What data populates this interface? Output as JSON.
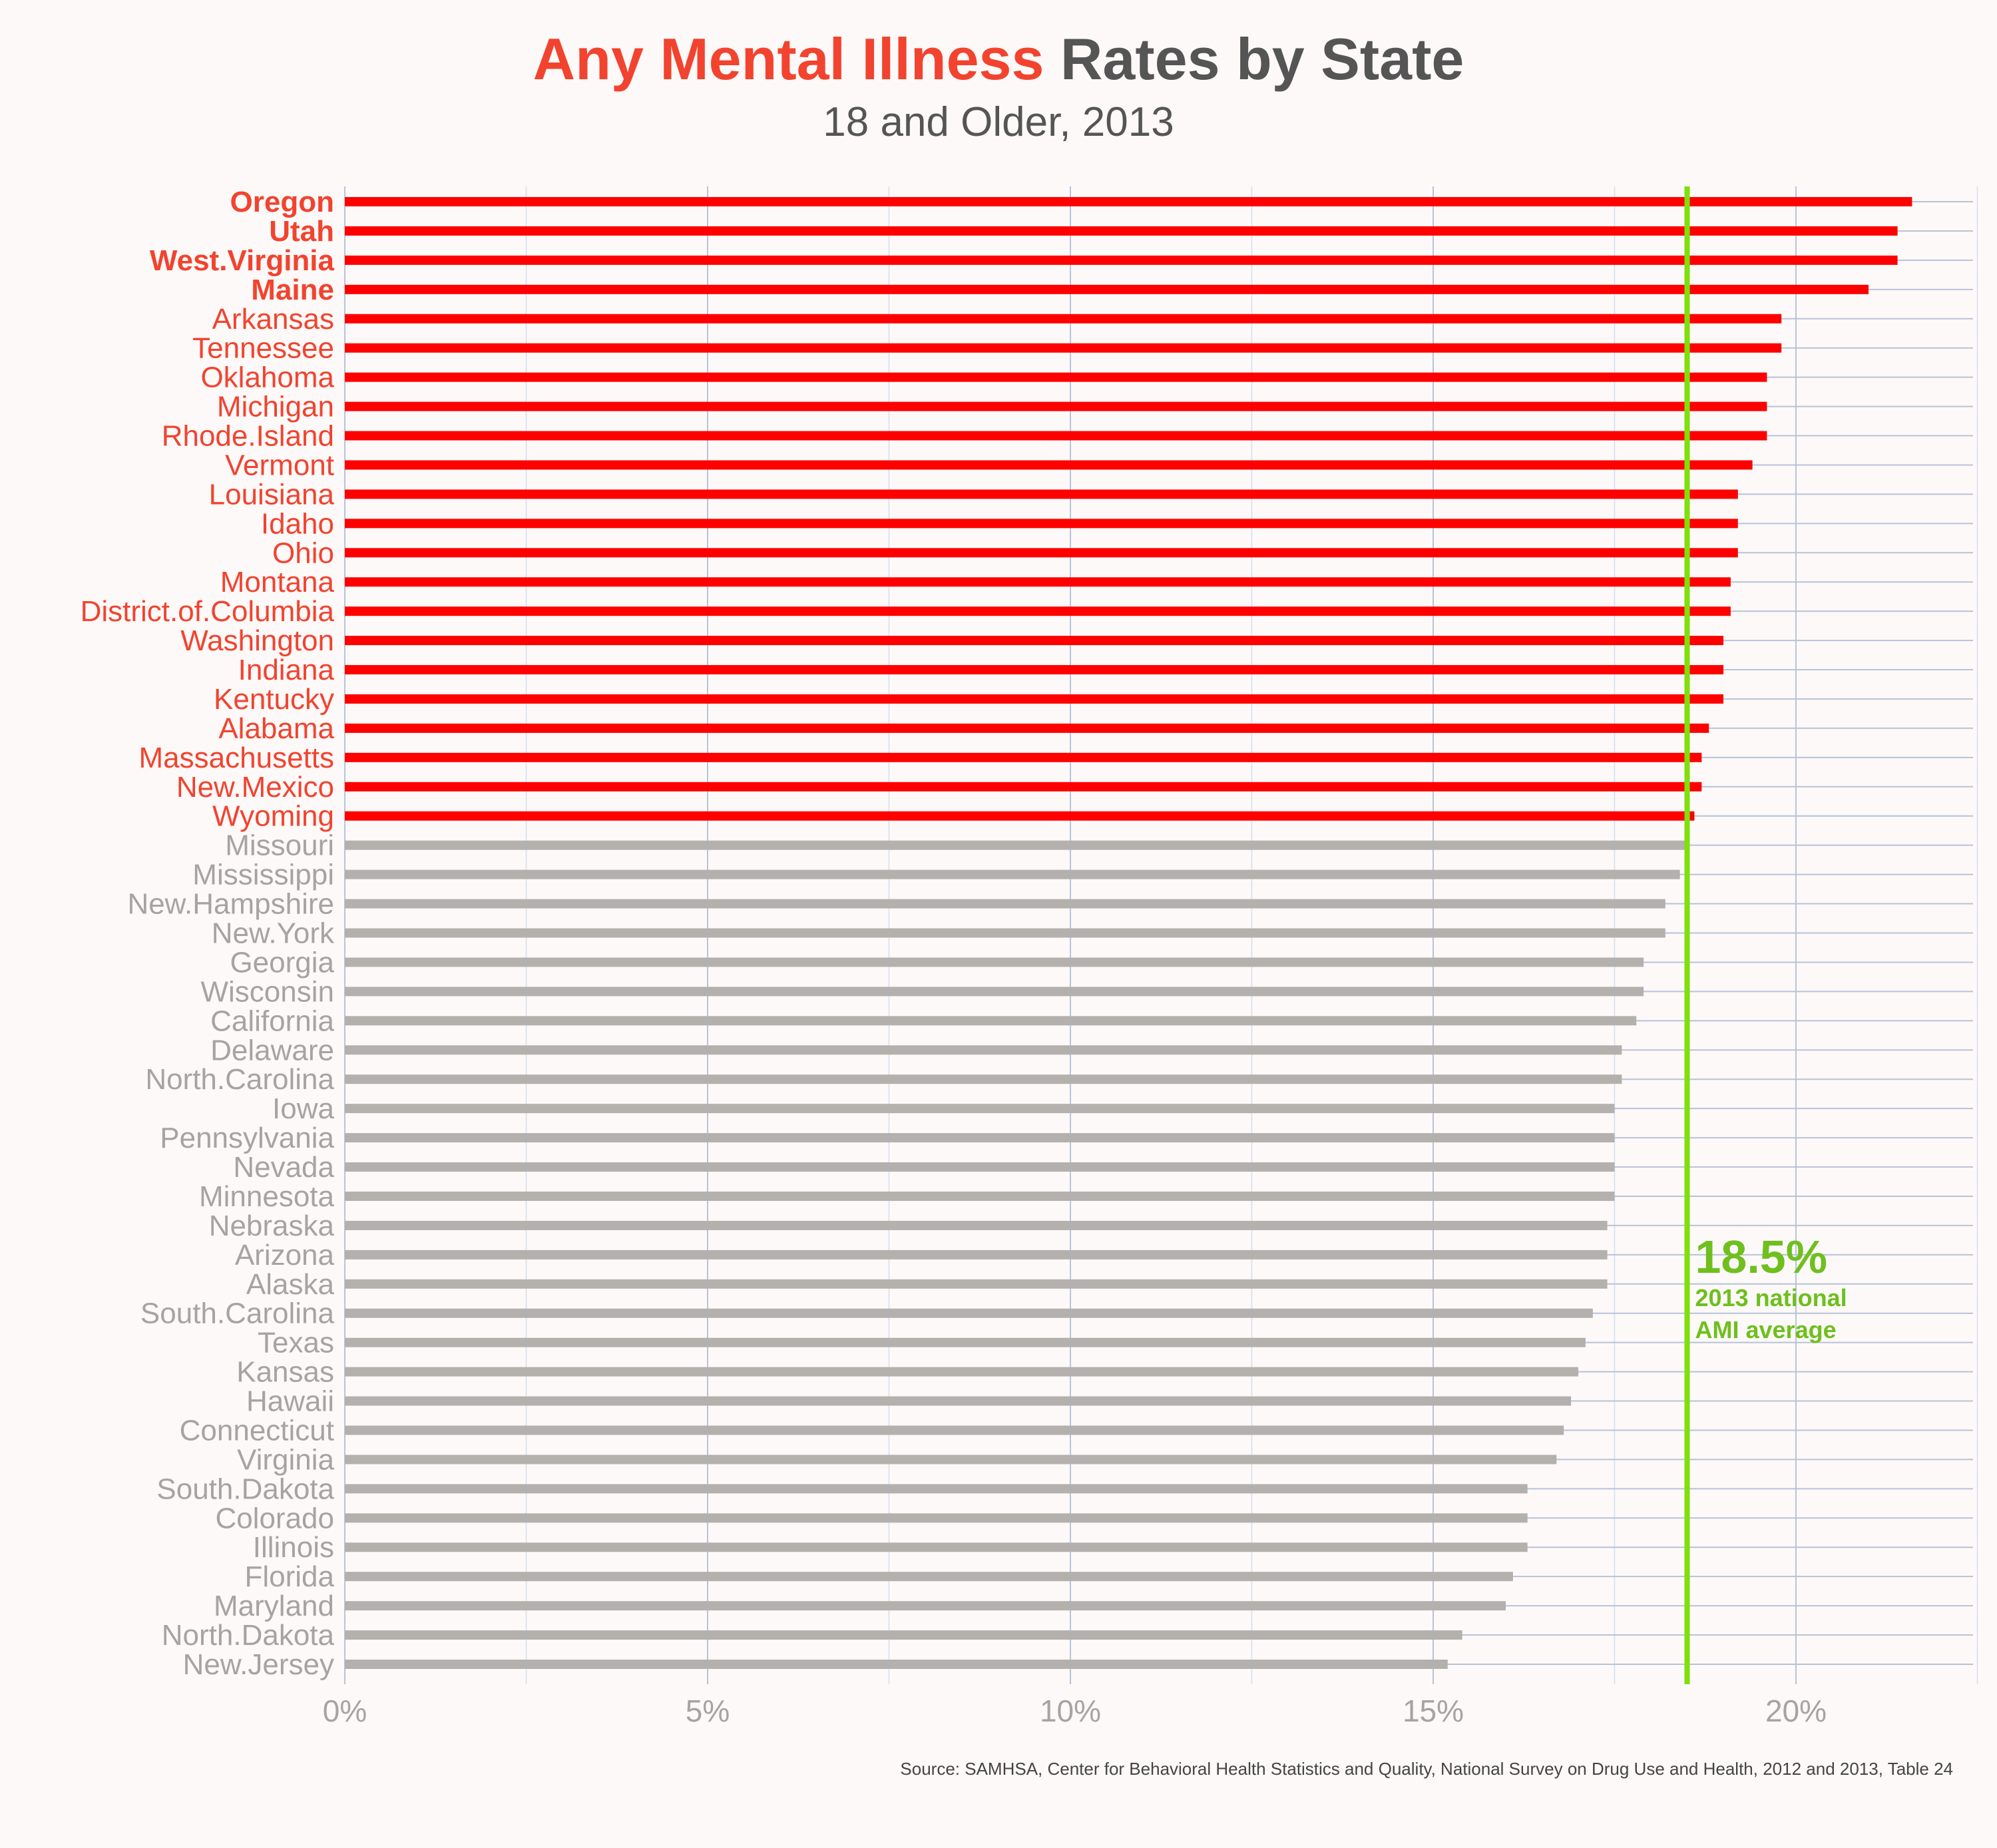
{
  "title": {
    "highlight": "Any Mental Illness",
    "rest": "Rates by State",
    "subtitle": "18 and Older, 2013"
  },
  "source": "Source: SAMHSA, Center for Behavioral Health Statistics and Quality, National Survey on Drug Use and Health, 2012 and 2013, Table 24",
  "annotation": {
    "value": "18.5%",
    "line1": "2013 national",
    "line2": "AMI average"
  },
  "colors": {
    "above_average": "#ff0000",
    "above_label": "#f2432f",
    "below_average": "#b3b0ae",
    "below_label": "#a6a4a3",
    "average_line": "#7fe00a",
    "annotation": "#6fbf1e",
    "grid": "#b7c3d8",
    "axis_text": "#a6a4a3"
  },
  "chart_data": {
    "type": "bar",
    "orientation": "horizontal",
    "title": "Any Mental Illness Rates by State",
    "subtitle": "18 and Older, 2013",
    "xlabel": "",
    "ylabel": "",
    "xlim": [
      0,
      22.5
    ],
    "x_ticks": [
      "0%",
      "5%",
      "10%",
      "15%",
      "20%"
    ],
    "x_tick_values": [
      0,
      5,
      10,
      15,
      20
    ],
    "grid": true,
    "reference_line": {
      "value": 18.5,
      "label": "18.5%"
    },
    "bold_categories": [
      "Oregon",
      "Utah",
      "West.Virginia",
      "Maine"
    ],
    "categories": [
      "Oregon",
      "Utah",
      "West.Virginia",
      "Maine",
      "Arkansas",
      "Tennessee",
      "Oklahoma",
      "Michigan",
      "Rhode.Island",
      "Vermont",
      "Louisiana",
      "Idaho",
      "Ohio",
      "Montana",
      "District.of.Columbia",
      "Washington",
      "Indiana",
      "Kentucky",
      "Alabama",
      "Massachusetts",
      "New.Mexico",
      "Wyoming",
      "Missouri",
      "Mississippi",
      "New.Hampshire",
      "New.York",
      "Georgia",
      "Wisconsin",
      "California",
      "Delaware",
      "North.Carolina",
      "Iowa",
      "Pennsylvania",
      "Nevada",
      "Minnesota",
      "Nebraska",
      "Arizona",
      "Alaska",
      "South.Carolina",
      "Texas",
      "Kansas",
      "Hawaii",
      "Connecticut",
      "Virginia",
      "South.Dakota",
      "Colorado",
      "Illinois",
      "Florida",
      "Maryland",
      "North.Dakota",
      "New.Jersey"
    ],
    "values": [
      21.6,
      21.4,
      21.4,
      21.0,
      19.8,
      19.8,
      19.6,
      19.6,
      19.6,
      19.4,
      19.2,
      19.2,
      19.2,
      19.1,
      19.1,
      19.0,
      19.0,
      19.0,
      18.8,
      18.7,
      18.7,
      18.6,
      18.5,
      18.4,
      18.2,
      18.2,
      17.9,
      17.9,
      17.8,
      17.6,
      17.6,
      17.5,
      17.5,
      17.5,
      17.5,
      17.4,
      17.4,
      17.4,
      17.2,
      17.1,
      17.0,
      16.9,
      16.8,
      16.7,
      16.3,
      16.3,
      16.3,
      16.1,
      16.0,
      15.4,
      15.2
    ]
  }
}
